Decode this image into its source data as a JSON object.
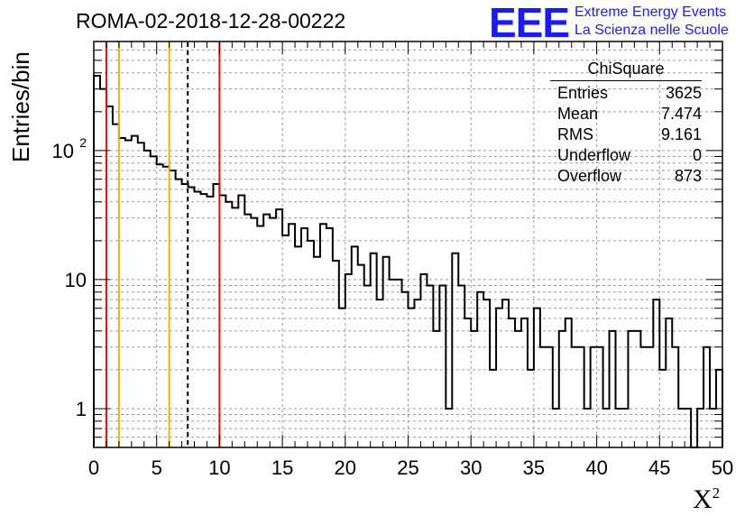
{
  "title": "ROMA-02-2018-12-28-00222",
  "logo": {
    "text": "EEE",
    "line1": "Extreme Energy Events",
    "line2": "La Scienza nelle Scuole",
    "color": "#1a1aff"
  },
  "stats_box": {
    "title": "ChiSquare",
    "rows": [
      {
        "label": "Entries",
        "value": "3625"
      },
      {
        "label": "Mean",
        "value": "7.474"
      },
      {
        "label": "RMS",
        "value": "9.161"
      },
      {
        "label": "Underflow",
        "value": "0"
      },
      {
        "label": "Overflow",
        "value": "873"
      }
    ]
  },
  "chart_data": {
    "type": "bar",
    "style": "step-histogram",
    "xlabel": "X",
    "xlabel_sup": "2",
    "ylabel": "Entries/bin",
    "xlim": [
      0,
      50
    ],
    "ylim": [
      0.5,
      700
    ],
    "yscale": "log",
    "grid": true,
    "bin_width": 0.5,
    "x_ticks": [
      0,
      5,
      10,
      15,
      20,
      25,
      30,
      35,
      40,
      45,
      50
    ],
    "y_ticks": [
      {
        "value": 1,
        "label": "1"
      },
      {
        "value": 10,
        "label": "10"
      },
      {
        "value": 100,
        "label": "10",
        "sup": "2"
      }
    ],
    "values": [
      380,
      300,
      220,
      160,
      125,
      120,
      130,
      115,
      100,
      90,
      78,
      75,
      70,
      60,
      55,
      52,
      48,
      46,
      44,
      55,
      45,
      40,
      36,
      45,
      32,
      30,
      26,
      32,
      30,
      35,
      22,
      27,
      18,
      25,
      20,
      15,
      27,
      25,
      14,
      6,
      11,
      18,
      13,
      9,
      16,
      7,
      15,
      10,
      10,
      8,
      6,
      7,
      11,
      9,
      4,
      9,
      1,
      16,
      9,
      5,
      4,
      8,
      7,
      2,
      6,
      7,
      5,
      4,
      5,
      2,
      6,
      3,
      3,
      1,
      4,
      5,
      3,
      3,
      1,
      3,
      3,
      1,
      4,
      1,
      1,
      4,
      4,
      3,
      3,
      7,
      2,
      5,
      3,
      1,
      1,
      0.4,
      1,
      3,
      1,
      2
    ]
  },
  "vlines": [
    {
      "x": 1,
      "color": "#dd1111",
      "dash": false
    },
    {
      "x": 2,
      "color": "#f0b400",
      "dash": false
    },
    {
      "x": 6,
      "color": "#f0b400",
      "dash": false
    },
    {
      "x": 7.474,
      "color": "#000000",
      "dash": true
    },
    {
      "x": 10,
      "color": "#dd1111",
      "dash": false
    }
  ]
}
